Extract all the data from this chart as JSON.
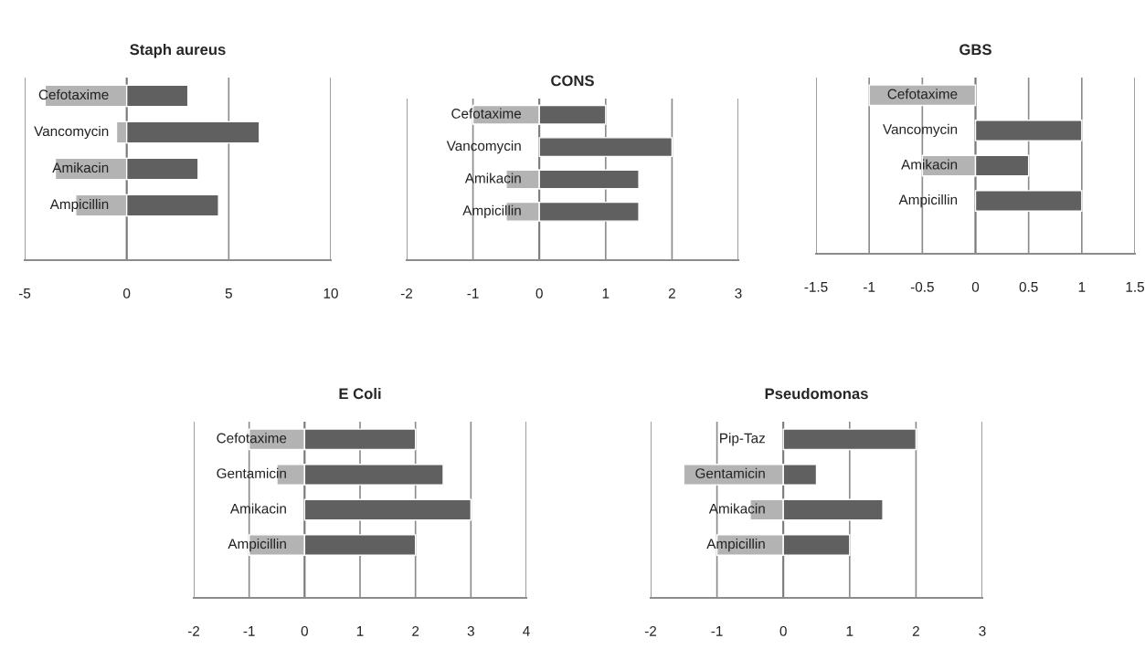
{
  "chart_data": [
    {
      "type": "bar",
      "orientation": "horizontal",
      "title": "Staph aureus",
      "stacked": true,
      "categories": [
        "Cefotaxime",
        "Vancomycin",
        "Amikacin",
        "Ampicillin"
      ],
      "xlim": [
        -5,
        10
      ],
      "xticks": [
        -5,
        0,
        5,
        10
      ],
      "grid": "x",
      "legend": false,
      "series": [
        {
          "color": "#b3b3b3",
          "values": [
            -4,
            -0.5,
            -3.5,
            -2.5
          ]
        },
        {
          "color": "#606060",
          "values": [
            3,
            6.5,
            3.5,
            4.5
          ]
        }
      ]
    },
    {
      "type": "bar",
      "orientation": "horizontal",
      "title": "CONS",
      "stacked": true,
      "categories": [
        "Cefotaxime",
        "Vancomycin",
        "Amikacin",
        "Ampicillin"
      ],
      "xlim": [
        -2,
        3
      ],
      "xticks": [
        -2,
        -1,
        0,
        1,
        2,
        3
      ],
      "grid": "x",
      "legend": false,
      "series": [
        {
          "color": "#b3b3b3",
          "values": [
            -1,
            null,
            -0.5,
            -0.5
          ]
        },
        {
          "color": "#606060",
          "values": [
            1,
            2,
            1.5,
            1.5
          ]
        }
      ]
    },
    {
      "type": "bar",
      "orientation": "horizontal",
      "title": "GBS",
      "stacked": true,
      "categories": [
        "Cefotaxime",
        "Vancomycin",
        "Amikacin",
        "Ampicillin"
      ],
      "xlim": [
        -1.5,
        1.5
      ],
      "xticks": [
        -1.5,
        -1,
        -0.5,
        0,
        0.5,
        1,
        1.5
      ],
      "grid": "x",
      "legend": false,
      "series": [
        {
          "color": "#b3b3b3",
          "values": [
            -1,
            null,
            -0.5,
            null
          ]
        },
        {
          "color": "#606060",
          "values": [
            null,
            1,
            0.5,
            1
          ]
        }
      ]
    },
    {
      "type": "bar",
      "orientation": "horizontal",
      "title": "E Coli",
      "stacked": true,
      "categories": [
        "Cefotaxime",
        "Gentamicin",
        "Amikacin",
        "Ampicillin"
      ],
      "xlim": [
        -2,
        4
      ],
      "xticks": [
        -2,
        -1,
        0,
        1,
        2,
        3,
        4
      ],
      "grid": "x",
      "legend": false,
      "series": [
        {
          "color": "#b3b3b3",
          "values": [
            -1,
            -0.5,
            null,
            -1
          ]
        },
        {
          "color": "#606060",
          "values": [
            2,
            2.5,
            3,
            2
          ]
        }
      ]
    },
    {
      "type": "bar",
      "orientation": "horizontal",
      "title": "Pseudomonas",
      "stacked": true,
      "categories": [
        "Pip-Taz",
        "Gentamicin",
        "Amikacin",
        "Ampicillin"
      ],
      "xlim": [
        -2,
        3
      ],
      "xticks": [
        -2,
        -1,
        0,
        1,
        2,
        3
      ],
      "grid": "x",
      "legend": false,
      "series": [
        {
          "color": "#b3b3b3",
          "values": [
            null,
            -1.5,
            -0.5,
            -1
          ]
        },
        {
          "color": "#606060",
          "values": [
            2,
            0.5,
            1.5,
            1
          ]
        }
      ]
    }
  ]
}
